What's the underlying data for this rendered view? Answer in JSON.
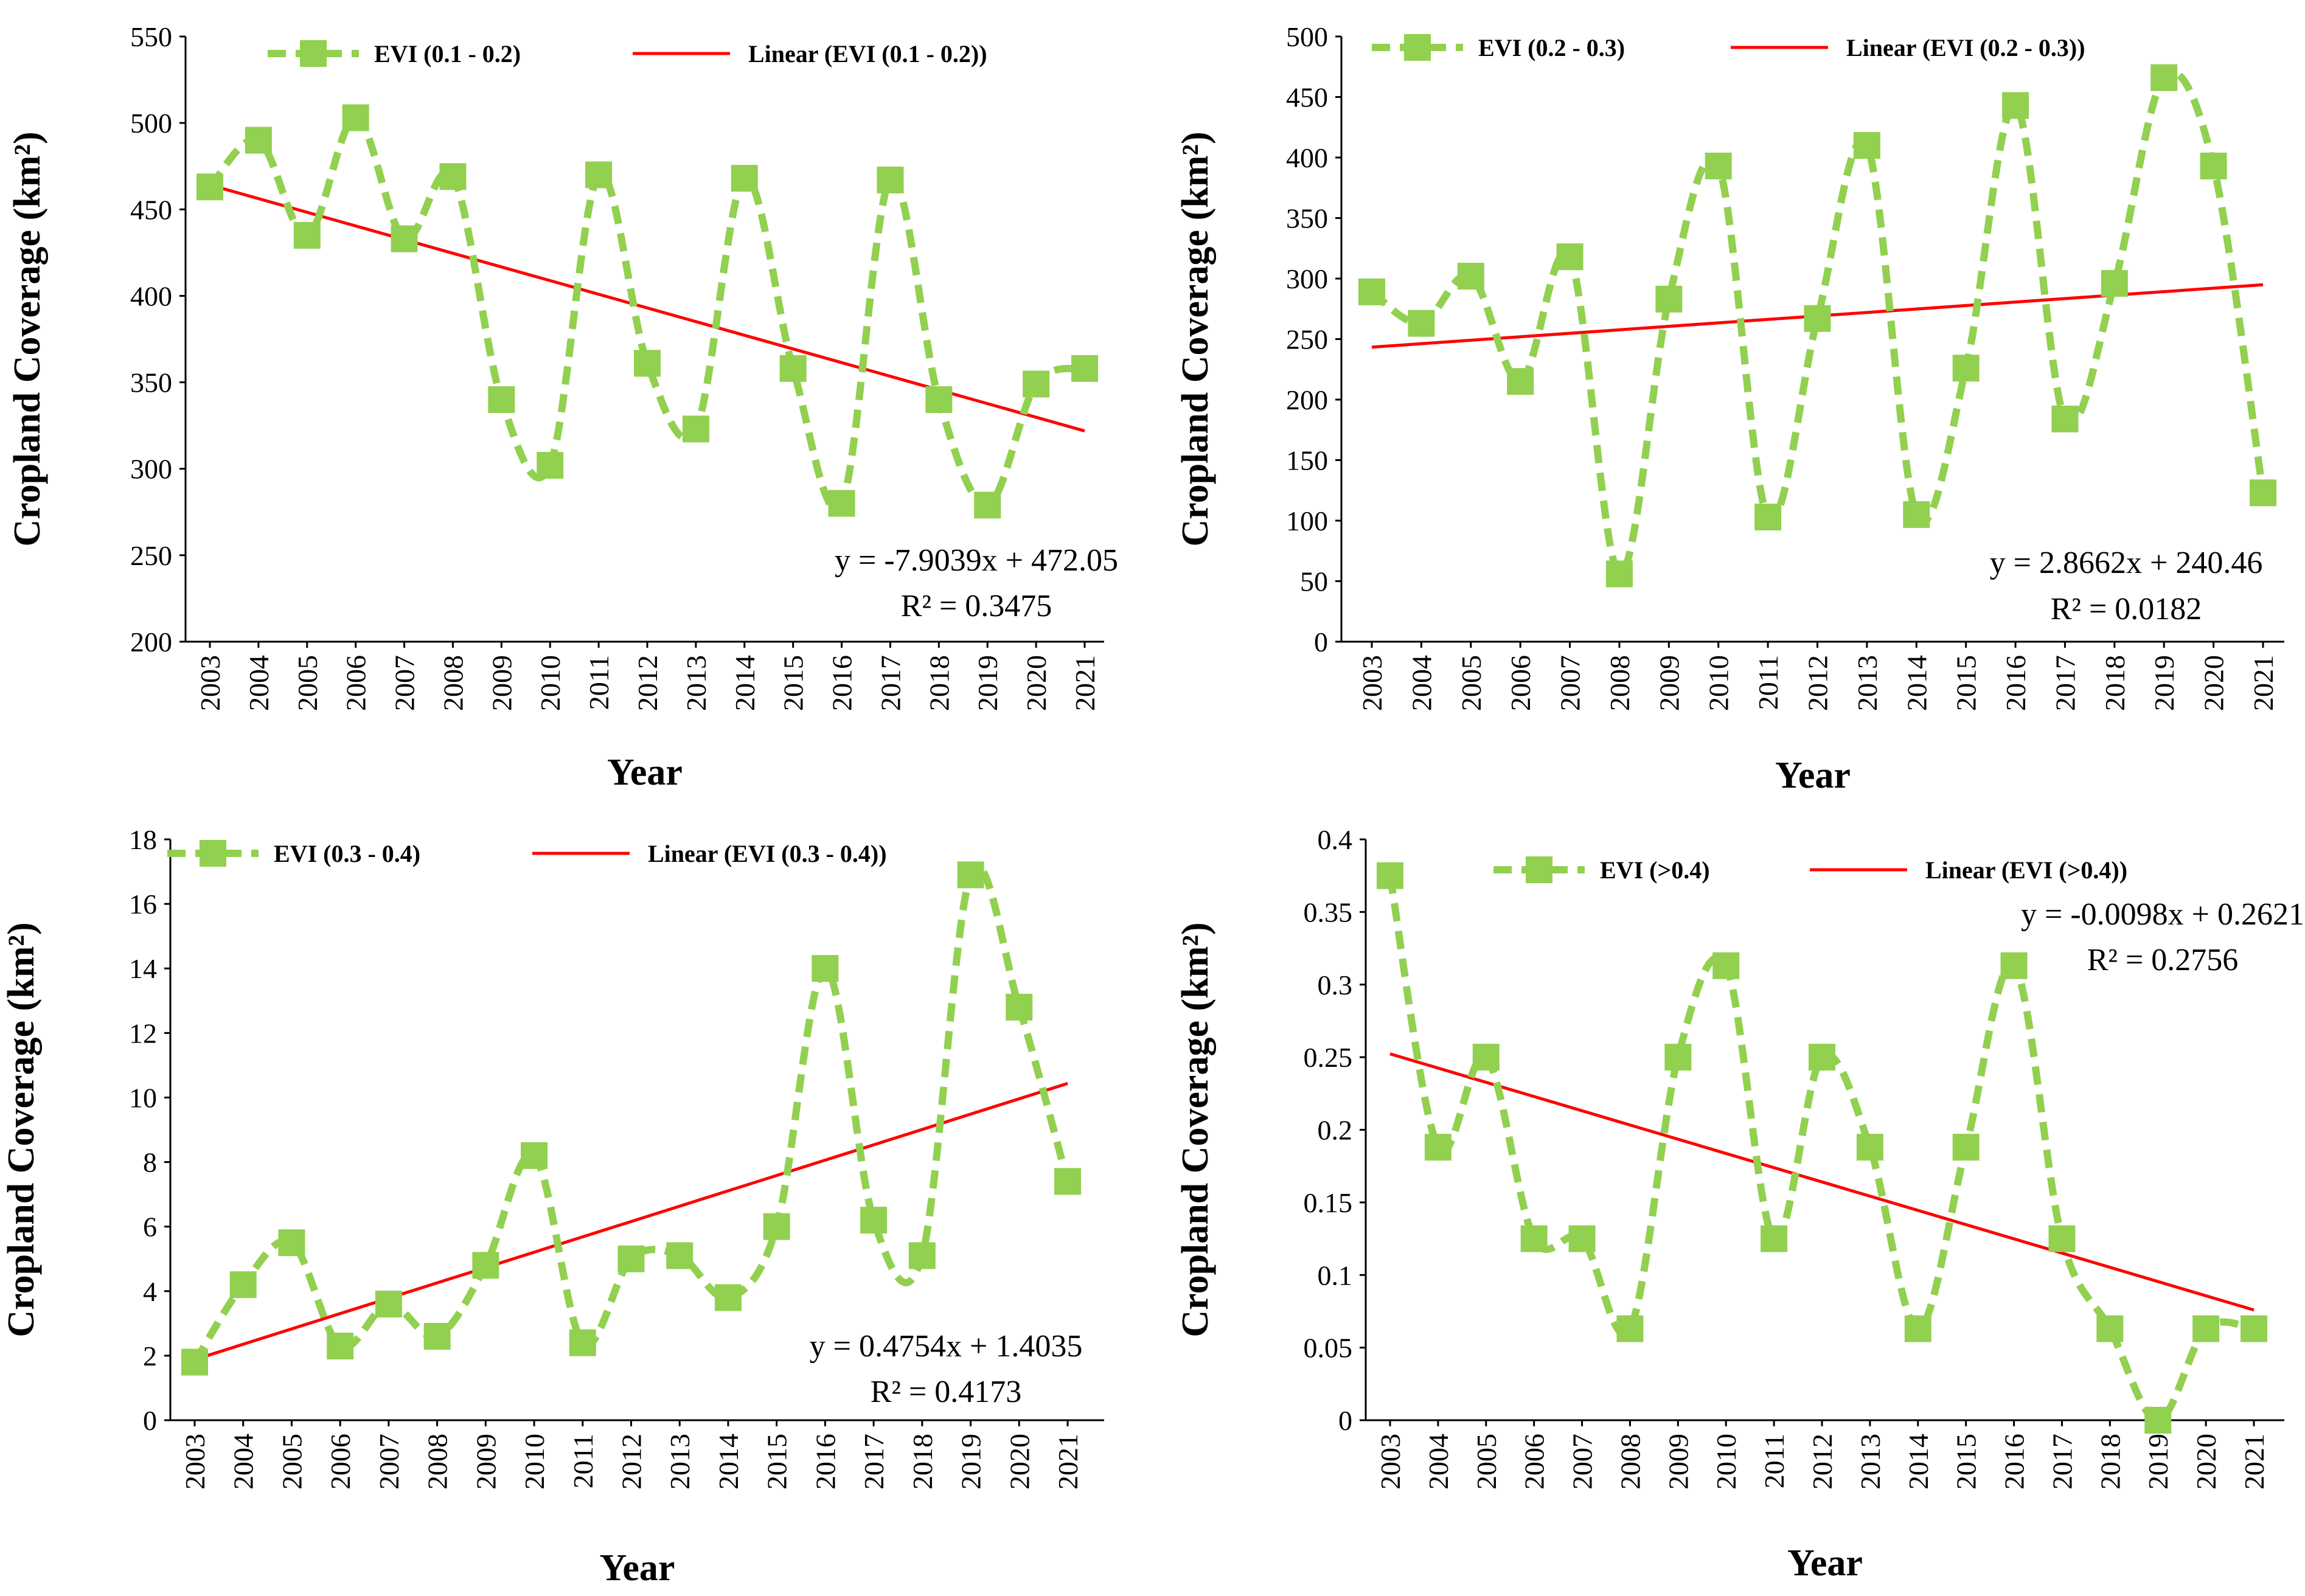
{
  "style": {
    "series_color": "#92D050",
    "trend_color": "#FF0000",
    "axis_color": "#000000"
  },
  "chart_data": [
    {
      "type": "line",
      "x": [
        "2003",
        "2004",
        "2005",
        "2006",
        "2007",
        "2008",
        "2009",
        "2010",
        "2011",
        "2012",
        "2013",
        "2014",
        "2015",
        "2016",
        "2017",
        "2018",
        "2019",
        "2020",
        "2021"
      ],
      "series": [
        {
          "name": "EVI (0.1 - 0.2)",
          "values": [
            463,
            490,
            435,
            503,
            433,
            469,
            340,
            302,
            470,
            361,
            323,
            468,
            358,
            280,
            467,
            340,
            279,
            349,
            358
          ]
        }
      ],
      "trendline": {
        "label": "Linear (EVI (0.1 - 0.2))",
        "slope": -7.9039,
        "intercept": 472.05
      },
      "equation": "y = -7.9039x + 472.05",
      "r2": "R² = 0.3475",
      "xlabel": "Year",
      "ylabel": "Cropland Coverage (km²)",
      "ylim": [
        200,
        550
      ],
      "yticks": [
        "200",
        "250",
        "300",
        "350",
        "400",
        "450",
        "500",
        "550"
      ]
    },
    {
      "type": "line",
      "x": [
        "2003",
        "2004",
        "2005",
        "2006",
        "2007",
        "2008",
        "2009",
        "2010",
        "2011",
        "2012",
        "2013",
        "2014",
        "2015",
        "2016",
        "2017",
        "2018",
        "2019",
        "2020",
        "2021"
      ],
      "series": [
        {
          "name": "EVI (0.2 - 0.3)",
          "values": [
            289,
            263,
            302,
            215,
            318,
            56,
            283,
            393,
            103,
            267,
            410,
            105,
            226,
            443,
            184,
            296,
            466,
            393,
            123
          ]
        }
      ],
      "trendline": {
        "label": "Linear (EVI (0.2 - 0.3))",
        "slope": 2.8662,
        "intercept": 240.46
      },
      "equation": "y = 2.8662x + 240.46",
      "r2": "R² = 0.0182",
      "xlabel": "Year",
      "ylabel": "Cropland Coverage (km²)",
      "ylim": [
        0,
        500
      ],
      "yticks": [
        "0",
        "50",
        "100",
        "150",
        "200",
        "250",
        "300",
        "350",
        "400",
        "450",
        "500"
      ]
    },
    {
      "type": "line",
      "x": [
        "2003",
        "2004",
        "2005",
        "2006",
        "2007",
        "2008",
        "2009",
        "2010",
        "2011",
        "2012",
        "2013",
        "2014",
        "2015",
        "2016",
        "2017",
        "2018",
        "2019",
        "2020",
        "2021"
      ],
      "series": [
        {
          "name": "EVI (0.3 - 0.4)",
          "values": [
            1.8,
            4.2,
            5.5,
            2.3,
            3.6,
            2.6,
            4.8,
            8.2,
            2.4,
            5.0,
            5.1,
            3.8,
            6.0,
            14.0,
            6.2,
            5.1,
            16.9,
            12.8,
            7.4
          ]
        }
      ],
      "trendline": {
        "label": "Linear (EVI (0.3 - 0.4))",
        "slope": 0.4754,
        "intercept": 1.4035
      },
      "equation": "y = 0.4754x + 1.4035",
      "r2": "R² = 0.4173",
      "xlabel": "Year",
      "ylabel": "Cropland Coverage (km²)",
      "ylim": [
        0,
        18
      ],
      "yticks": [
        "0",
        "2",
        "4",
        "6",
        "8",
        "10",
        "12",
        "14",
        "16",
        "18"
      ]
    },
    {
      "type": "line",
      "x": [
        "2003",
        "2004",
        "2005",
        "2006",
        "2007",
        "2008",
        "2009",
        "2010",
        "2011",
        "2012",
        "2013",
        "2014",
        "2015",
        "2016",
        "2017",
        "2018",
        "2019",
        "2020",
        "2021"
      ],
      "series": [
        {
          "name": "EVI (>0.4)",
          "values": [
            0.375,
            0.188,
            0.25,
            0.125,
            0.125,
            0.063,
            0.25,
            0.313,
            0.125,
            0.25,
            0.188,
            0.063,
            0.188,
            0.313,
            0.125,
            0.063,
            0.0,
            0.063,
            0.063
          ]
        }
      ],
      "trendline": {
        "label": "Linear (EVI (>0.4))",
        "slope": -0.0098,
        "intercept": 0.2621
      },
      "equation": "y = -0.0098x + 0.2621",
      "r2": "R² = 0.2756",
      "xlabel": "Year",
      "ylabel": "Cropland Coverage (km²)",
      "ylim": [
        0,
        0.4
      ],
      "yticks": [
        "0",
        "0.05",
        "0.1",
        "0.15",
        "0.2",
        "0.25",
        "0.3",
        "0.35",
        "0.4"
      ]
    }
  ]
}
